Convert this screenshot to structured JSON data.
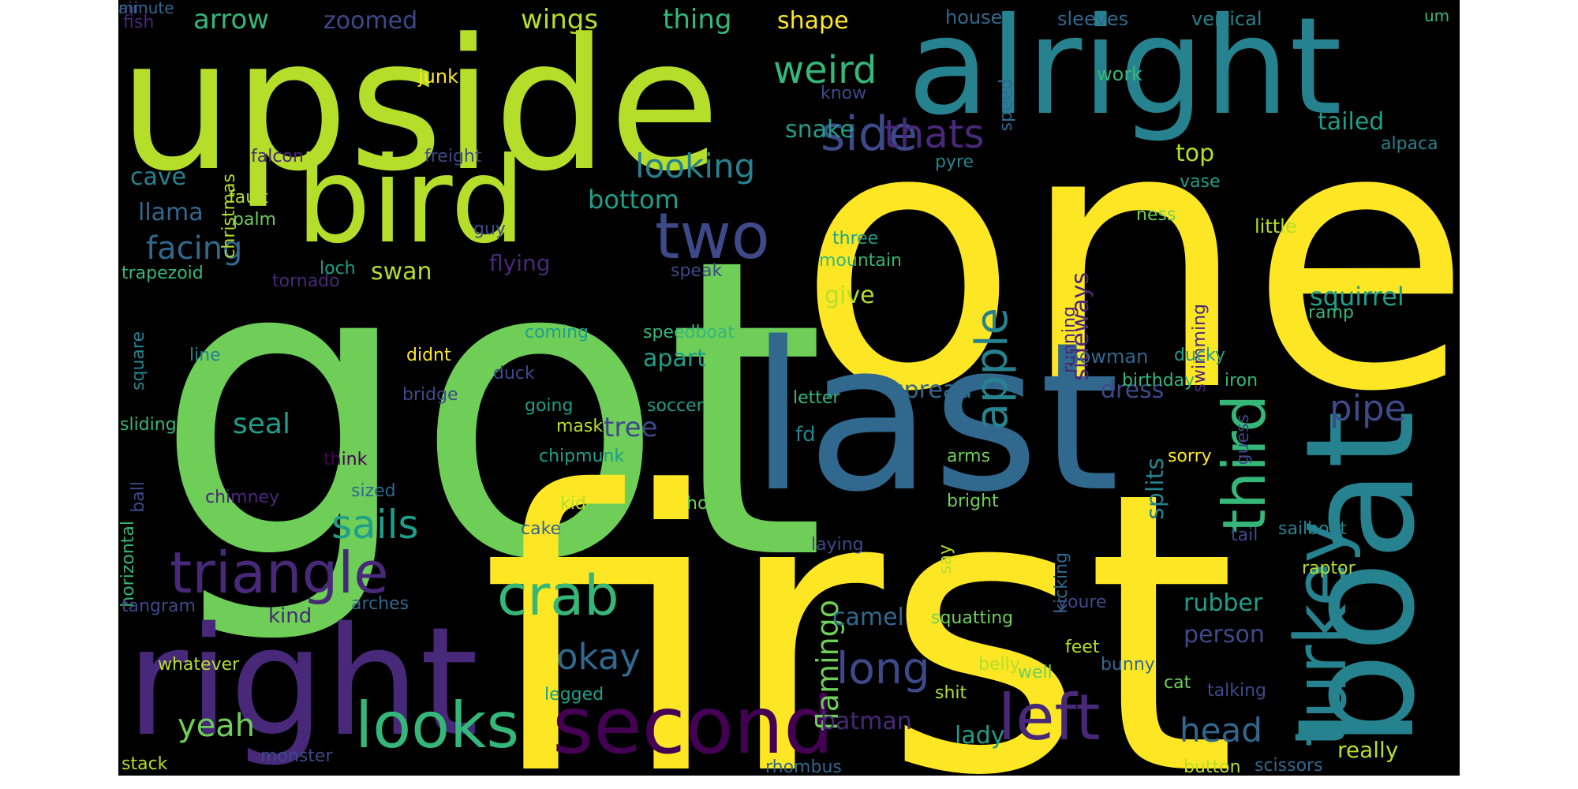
{
  "palette": {
    "c1": "#fde725",
    "c2": "#b5de2b",
    "c3": "#6ece58",
    "c4": "#35b779",
    "c5": "#1f9e89",
    "c6": "#26828e",
    "c7": "#31688e",
    "c8": "#3e4989",
    "c9": "#482878",
    "c10": "#440154"
  },
  "words": [
    {
      "t": "one",
      "c": "c1"
    },
    {
      "t": "got",
      "c": "c3"
    },
    {
      "t": "first",
      "c": "c1"
    },
    {
      "t": "upside",
      "c": "c2"
    },
    {
      "t": "alright",
      "c": "c6"
    },
    {
      "t": "last",
      "c": "c7"
    },
    {
      "t": "bird",
      "c": "c2"
    },
    {
      "t": "boat",
      "c": "c6"
    },
    {
      "t": "right",
      "c": "c9"
    },
    {
      "t": "second",
      "c": "c10"
    },
    {
      "t": "looks",
      "c": "c4"
    },
    {
      "t": "left",
      "c": "c9"
    },
    {
      "t": "turkey",
      "c": "c6"
    },
    {
      "t": "third",
      "c": "c4"
    },
    {
      "t": "two",
      "c": "c8"
    },
    {
      "t": "crab",
      "c": "c4"
    },
    {
      "t": "triangle",
      "c": "c9"
    },
    {
      "t": "side",
      "c": "c8"
    },
    {
      "t": "thats",
      "c": "c9"
    },
    {
      "t": "weird",
      "c": "c4"
    },
    {
      "t": "apple",
      "c": "c6"
    },
    {
      "t": "sails",
      "c": "c5"
    },
    {
      "t": "looking",
      "c": "c6"
    },
    {
      "t": "facing",
      "c": "c7"
    },
    {
      "t": "long",
      "c": "c8"
    },
    {
      "t": "flamingo",
      "c": "c3"
    },
    {
      "t": "okay",
      "c": "c7"
    },
    {
      "t": "yeah",
      "c": "c3"
    },
    {
      "t": "head",
      "c": "c7"
    },
    {
      "t": "pipe",
      "c": "c8"
    },
    {
      "t": "squirrel",
      "c": "c5"
    },
    {
      "t": "tailed",
      "c": "c5"
    },
    {
      "t": "snake",
      "c": "c5"
    },
    {
      "t": "top",
      "c": "c2"
    },
    {
      "t": "wings",
      "c": "c2"
    },
    {
      "t": "arrow",
      "c": "c4"
    },
    {
      "t": "shape",
      "c": "c1"
    },
    {
      "t": "thing",
      "c": "c4"
    },
    {
      "t": "zoomed",
      "c": "c8"
    },
    {
      "t": "seal",
      "c": "c5"
    },
    {
      "t": "bottom",
      "c": "c5"
    },
    {
      "t": "cave",
      "c": "c6"
    },
    {
      "t": "llama",
      "c": "c7"
    },
    {
      "t": "swan",
      "c": "c2"
    },
    {
      "t": "flying",
      "c": "c9"
    },
    {
      "t": "give",
      "c": "c2"
    },
    {
      "t": "sideways",
      "c": "c9"
    },
    {
      "t": "apart",
      "c": "c5"
    },
    {
      "t": "spread",
      "c": "c7"
    },
    {
      "t": "dress",
      "c": "c8"
    },
    {
      "t": "splits",
      "c": "c6"
    },
    {
      "t": "rubber",
      "c": "c5"
    },
    {
      "t": "person",
      "c": "c8"
    },
    {
      "t": "camel",
      "c": "c7"
    },
    {
      "t": "tree",
      "c": "c8"
    },
    {
      "t": "batman",
      "c": "c9"
    },
    {
      "t": "lady",
      "c": "c5"
    },
    {
      "t": "really",
      "c": "c2"
    },
    {
      "t": "kind",
      "c": "c9"
    },
    {
      "t": "fd",
      "c": "c6"
    },
    {
      "t": "fish",
      "c": "c9"
    },
    {
      "t": "house",
      "c": "c7"
    },
    {
      "t": "sleeves",
      "c": "c7"
    },
    {
      "t": "vertical",
      "c": "c6"
    },
    {
      "t": "um",
      "c": "c4"
    },
    {
      "t": "work",
      "c": "c4"
    },
    {
      "t": "junk",
      "c": "c1"
    },
    {
      "t": "christmas",
      "c": "c2"
    },
    {
      "t": "speed",
      "c": "c7"
    },
    {
      "t": "know",
      "c": "c8"
    },
    {
      "t": "falcon",
      "c": "c9"
    },
    {
      "t": "freight",
      "c": "c8"
    },
    {
      "t": "pyre",
      "c": "c6"
    },
    {
      "t": "vase",
      "c": "c5"
    },
    {
      "t": "alpaca",
      "c": "c6"
    },
    {
      "t": "fault",
      "c": "c2"
    },
    {
      "t": "palm",
      "c": "c3"
    },
    {
      "t": "guy",
      "c": "c8"
    },
    {
      "t": "three",
      "c": "c5"
    },
    {
      "t": "mountain",
      "c": "c4"
    },
    {
      "t": "ness",
      "c": "c3"
    },
    {
      "t": "little",
      "c": "c2"
    },
    {
      "t": "trapezoid",
      "c": "c4"
    },
    {
      "t": "tornado",
      "c": "c9"
    },
    {
      "t": "loch",
      "c": "c5"
    },
    {
      "t": "speak",
      "c": "c8"
    },
    {
      "t": "running",
      "c": "c9"
    },
    {
      "t": "swimming",
      "c": "c9"
    },
    {
      "t": "ramp",
      "c": "c4"
    },
    {
      "t": "square",
      "c": "c6"
    },
    {
      "t": "coming",
      "c": "c5"
    },
    {
      "t": "speedboat",
      "c": "c4"
    },
    {
      "t": "line",
      "c": "c6"
    },
    {
      "t": "didnt",
      "c": "c1"
    },
    {
      "t": "snowman",
      "c": "c7"
    },
    {
      "t": "ducky",
      "c": "c5"
    },
    {
      "t": "duck",
      "c": "c8"
    },
    {
      "t": "bridge",
      "c": "c8"
    },
    {
      "t": "going",
      "c": "c5"
    },
    {
      "t": "soccer",
      "c": "c5"
    },
    {
      "t": "letter",
      "c": "c4"
    },
    {
      "t": "birthday",
      "c": "c4"
    },
    {
      "t": "iron",
      "c": "c4"
    },
    {
      "t": "guess",
      "c": "c8"
    },
    {
      "t": "sliding",
      "c": "c4"
    },
    {
      "t": "mask",
      "c": "c2"
    },
    {
      "t": "chipmunk",
      "c": "c5"
    },
    {
      "t": "think",
      "c": "c10"
    },
    {
      "t": "sorry",
      "c": "c1"
    },
    {
      "t": "ball",
      "c": "c8"
    },
    {
      "t": "sized",
      "c": "c7"
    },
    {
      "t": "arms",
      "c": "c3"
    },
    {
      "t": "chimney",
      "c": "c9"
    },
    {
      "t": "horizontal",
      "c": "c4"
    },
    {
      "t": "cake",
      "c": "c7"
    },
    {
      "t": "tail",
      "c": "c8"
    },
    {
      "t": "kid",
      "c": "c2"
    },
    {
      "t": "hold",
      "c": "c3"
    },
    {
      "t": "bright",
      "c": "c3"
    },
    {
      "t": "kicking",
      "c": "c7"
    },
    {
      "t": "raptor",
      "c": "c2"
    },
    {
      "t": "sailboat",
      "c": "c6"
    },
    {
      "t": "laying",
      "c": "c8"
    },
    {
      "t": "say",
      "c": "c2"
    },
    {
      "t": "tangram",
      "c": "c8"
    },
    {
      "t": "arches",
      "c": "c7"
    },
    {
      "t": "youre",
      "c": "c8"
    },
    {
      "t": "squatting",
      "c": "c3"
    },
    {
      "t": "feet",
      "c": "c2"
    },
    {
      "t": "well",
      "c": "c3"
    },
    {
      "t": "whatever",
      "c": "c2"
    },
    {
      "t": "belly",
      "c": "c2"
    },
    {
      "t": "bunny",
      "c": "c7"
    },
    {
      "t": "cat",
      "c": "c3"
    },
    {
      "t": "talking",
      "c": "c8"
    },
    {
      "t": "legged",
      "c": "c5"
    },
    {
      "t": "shit",
      "c": "c2"
    },
    {
      "t": "stack",
      "c": "c2"
    },
    {
      "t": "monster",
      "c": "c8"
    },
    {
      "t": "rhombus",
      "c": "c7"
    },
    {
      "t": "button",
      "c": "c2"
    },
    {
      "t": "scissors",
      "c": "c7"
    },
    {
      "t": "air",
      "c": "c8"
    },
    {
      "t": "minute",
      "c": "c7"
    }
  ]
}
